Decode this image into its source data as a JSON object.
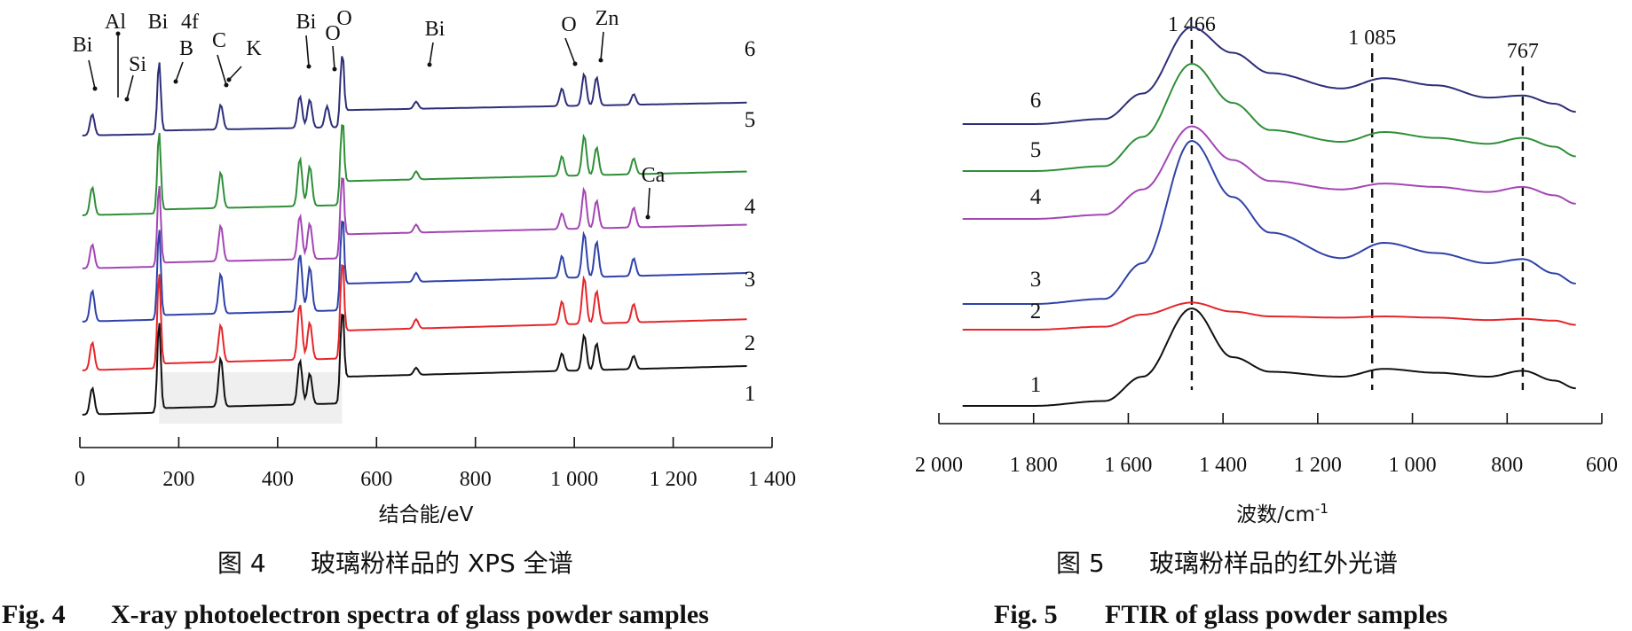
{
  "colors": {
    "1": "#111111",
    "2": "#e5262b",
    "3": "#2f42a8",
    "4": "#a346b4",
    "5": "#2f8f38",
    "6": "#2e2e78",
    "shade": "#efefef"
  },
  "figures": {
    "fig4": {
      "caption_zh_num": "图 4",
      "caption_zh": "玻璃粉样品的 XPS 全谱",
      "caption_en_num": "Fig. 4",
      "caption_en": "X-ray photoelectron spectra of glass powder samples"
    },
    "fig5": {
      "caption_zh_num": "图 5",
      "caption_zh": "玻璃粉样品的红外光谱",
      "caption_en_num": "Fig. 5",
      "caption_en": "FTIR of glass powder samples"
    }
  },
  "chart_data": [
    {
      "type": "line",
      "xlabel": "结合能/eV",
      "ylabel": "",
      "xlim": [
        0,
        1400
      ],
      "x_ticks": [
        0,
        200,
        400,
        600,
        800,
        1000,
        1200,
        1400
      ],
      "x_tick_labels": [
        "0",
        "200",
        "400",
        "600",
        "800",
        "1 000",
        "1 200",
        "1 400"
      ],
      "y_axis_shown": false,
      "series": [
        {
          "name": "1",
          "baseline": [
            0,
            0.05,
            0.5,
            0.8
          ],
          "peaks": [
            [
              25,
              0.3
            ],
            [
              160,
              1.0
            ],
            [
              285,
              0.55
            ],
            [
              445,
              0.5
            ],
            [
              465,
              0.35
            ],
            [
              530,
              1.0
            ],
            [
              680,
              0.08
            ],
            [
              975,
              0.2
            ],
            [
              1020,
              0.4
            ],
            [
              1045,
              0.3
            ],
            [
              1120,
              0.15
            ]
          ]
        },
        {
          "name": "2",
          "baseline": [
            0,
            0.05,
            0.5,
            0.8
          ],
          "peaks": [
            [
              25,
              0.3
            ],
            [
              160,
              1.0
            ],
            [
              285,
              0.4
            ],
            [
              445,
              0.6
            ],
            [
              465,
              0.4
            ],
            [
              530,
              1.0
            ],
            [
              680,
              0.1
            ],
            [
              975,
              0.25
            ],
            [
              1020,
              0.5
            ],
            [
              1045,
              0.35
            ],
            [
              1120,
              0.2
            ]
          ]
        },
        {
          "name": "3",
          "baseline": [
            0,
            0.05,
            0.5,
            0.8
          ],
          "peaks": [
            [
              25,
              0.35
            ],
            [
              160,
              1.0
            ],
            [
              285,
              0.45
            ],
            [
              445,
              0.65
            ],
            [
              465,
              0.5
            ],
            [
              530,
              1.0
            ],
            [
              680,
              0.1
            ],
            [
              975,
              0.25
            ],
            [
              1020,
              0.5
            ],
            [
              1045,
              0.4
            ],
            [
              1120,
              0.2
            ]
          ]
        },
        {
          "name": "4",
          "baseline": [
            0,
            0.05,
            0.5,
            0.8
          ],
          "peaks": [
            [
              25,
              0.3
            ],
            [
              160,
              1.0
            ],
            [
              285,
              0.45
            ],
            [
              445,
              0.55
            ],
            [
              465,
              0.45
            ],
            [
              530,
              1.0
            ],
            [
              680,
              0.1
            ],
            [
              975,
              0.2
            ],
            [
              1020,
              0.5
            ],
            [
              1045,
              0.35
            ],
            [
              1120,
              0.25
            ]
          ]
        },
        {
          "name": "5",
          "baseline": [
            0,
            0.05,
            0.5,
            0.8
          ],
          "peaks": [
            [
              25,
              0.35
            ],
            [
              160,
              1.0
            ],
            [
              285,
              0.45
            ],
            [
              445,
              0.6
            ],
            [
              465,
              0.5
            ],
            [
              530,
              1.0
            ],
            [
              680,
              0.1
            ],
            [
              975,
              0.25
            ],
            [
              1020,
              0.5
            ],
            [
              1045,
              0.35
            ],
            [
              1120,
              0.2
            ]
          ]
        },
        {
          "name": "6",
          "baseline": [
            0,
            0.05,
            0.4,
            0.7
          ],
          "peaks": [
            [
              25,
              0.3
            ],
            [
              160,
              1.0
            ],
            [
              285,
              0.35
            ],
            [
              445,
              0.45
            ],
            [
              465,
              0.4
            ],
            [
              500,
              0.3
            ],
            [
              530,
              1.0
            ],
            [
              680,
              0.1
            ],
            [
              975,
              0.25
            ],
            [
              1020,
              0.45
            ],
            [
              1045,
              0.4
            ],
            [
              1120,
              0.15
            ]
          ]
        }
      ],
      "annotations": [
        {
          "text": "Bi",
          "x": 25
        },
        {
          "text": "Al",
          "x": 75
        },
        {
          "text": "Si",
          "x": 100
        },
        {
          "text": "Bi",
          "x": 150
        },
        {
          "text": "4f",
          "x": 200
        },
        {
          "text": "B",
          "x": 190
        },
        {
          "text": "C",
          "x": 285
        },
        {
          "text": "K",
          "x": 300
        },
        {
          "text": "Bi",
          "x": 445
        },
        {
          "text": "O",
          "x": 500
        },
        {
          "text": "O",
          "x": 530
        },
        {
          "text": "Bi",
          "x": 680
        },
        {
          "text": "O",
          "x": 975
        },
        {
          "text": "Zn",
          "x": 1020
        },
        {
          "text": "Ca",
          "x": 1120
        }
      ]
    },
    {
      "type": "line",
      "xlabel": "波数/cm-1",
      "ylabel": "",
      "xlim": [
        2000,
        600
      ],
      "x_ticks": [
        2000,
        1800,
        1600,
        1400,
        1200,
        1000,
        800,
        600
      ],
      "x_tick_labels": [
        "2 000",
        "1 800",
        "1 600",
        "1 400",
        "1 200",
        "1 000",
        "800",
        "600"
      ],
      "y_axis_shown": false,
      "reference_lines": [
        {
          "x": 1466,
          "label": "1 466"
        },
        {
          "x": 1085,
          "label": "1 085"
        },
        {
          "x": 767,
          "label": "767"
        }
      ],
      "series": [
        {
          "name": "1",
          "points": [
            [
              1950,
              0.0
            ],
            [
              1800,
              0.0
            ],
            [
              1650,
              0.05
            ],
            [
              1570,
              0.3
            ],
            [
              1466,
              1.0
            ],
            [
              1380,
              0.5
            ],
            [
              1300,
              0.35
            ],
            [
              1150,
              0.3
            ],
            [
              1060,
              0.38
            ],
            [
              950,
              0.34
            ],
            [
              840,
              0.3
            ],
            [
              767,
              0.36
            ],
            [
              700,
              0.26
            ],
            [
              655,
              0.18
            ]
          ]
        },
        {
          "name": "2",
          "points": [
            [
              1950,
              0.0
            ],
            [
              1800,
              0.0
            ],
            [
              1650,
              0.05
            ],
            [
              1570,
              0.25
            ],
            [
              1466,
              0.45
            ],
            [
              1380,
              0.3
            ],
            [
              1300,
              0.22
            ],
            [
              1150,
              0.2
            ],
            [
              1060,
              0.22
            ],
            [
              950,
              0.2
            ],
            [
              840,
              0.16
            ],
            [
              767,
              0.18
            ],
            [
              700,
              0.15
            ],
            [
              655,
              0.08
            ]
          ]
        },
        {
          "name": "3",
          "points": [
            [
              1950,
              0.0
            ],
            [
              1800,
              0.0
            ],
            [
              1650,
              0.05
            ],
            [
              1570,
              0.4
            ],
            [
              1466,
              1.6
            ],
            [
              1380,
              1.05
            ],
            [
              1300,
              0.7
            ],
            [
              1150,
              0.45
            ],
            [
              1060,
              0.6
            ],
            [
              950,
              0.5
            ],
            [
              840,
              0.4
            ],
            [
              767,
              0.44
            ],
            [
              700,
              0.3
            ],
            [
              655,
              0.2
            ]
          ]
        },
        {
          "name": "4",
          "points": [
            [
              1950,
              0.0
            ],
            [
              1800,
              0.0
            ],
            [
              1650,
              0.05
            ],
            [
              1570,
              0.35
            ],
            [
              1466,
              1.1
            ],
            [
              1380,
              0.7
            ],
            [
              1300,
              0.45
            ],
            [
              1150,
              0.35
            ],
            [
              1060,
              0.42
            ],
            [
              950,
              0.38
            ],
            [
              840,
              0.32
            ],
            [
              767,
              0.38
            ],
            [
              700,
              0.28
            ],
            [
              655,
              0.18
            ]
          ]
        },
        {
          "name": "5",
          "points": [
            [
              1950,
              0.0
            ],
            [
              1800,
              0.0
            ],
            [
              1650,
              0.05
            ],
            [
              1570,
              0.35
            ],
            [
              1466,
              1.1
            ],
            [
              1380,
              0.7
            ],
            [
              1300,
              0.42
            ],
            [
              1150,
              0.3
            ],
            [
              1060,
              0.4
            ],
            [
              950,
              0.34
            ],
            [
              840,
              0.28
            ],
            [
              767,
              0.34
            ],
            [
              700,
              0.25
            ],
            [
              655,
              0.15
            ]
          ]
        },
        {
          "name": "6",
          "points": [
            [
              1950,
              0.0
            ],
            [
              1800,
              0.0
            ],
            [
              1650,
              0.05
            ],
            [
              1570,
              0.3
            ],
            [
              1466,
              0.95
            ],
            [
              1380,
              0.7
            ],
            [
              1300,
              0.5
            ],
            [
              1150,
              0.35
            ],
            [
              1060,
              0.45
            ],
            [
              950,
              0.38
            ],
            [
              840,
              0.26
            ],
            [
              767,
              0.28
            ],
            [
              700,
              0.2
            ],
            [
              655,
              0.12
            ]
          ]
        }
      ]
    }
  ]
}
